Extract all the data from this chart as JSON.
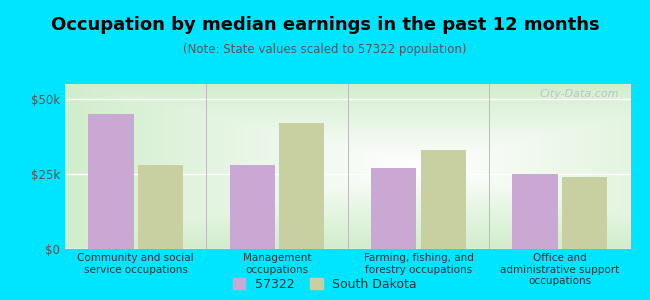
{
  "title": "Occupation by median earnings in the past 12 months",
  "subtitle": "(Note: State values scaled to 57322 population)",
  "categories": [
    "Community and social\nservice occupations",
    "Management\noccupations",
    "Farming, fishing, and\nforestry occupations",
    "Office and\nadministrative support\noccupations"
  ],
  "values_57322": [
    45000,
    28000,
    27000,
    25000
  ],
  "values_sd": [
    28000,
    42000,
    33000,
    24000
  ],
  "color_57322": "#c9a8d4",
  "color_sd": "#c8cfa0",
  "background_outer": "#00e5ff",
  "background_inner_edge": "#c8e6c0",
  "background_inner_center": "#f5faf0",
  "yticks": [
    0,
    25000,
    50000
  ],
  "ytick_labels": [
    "$0",
    "$25k",
    "$50k"
  ],
  "ylim": [
    0,
    55000
  ],
  "legend_label_1": "57322",
  "legend_label_2": "South Dakota",
  "watermark": "City-Data.com",
  "title_fontsize": 13,
  "subtitle_fontsize": 8.5,
  "bar_width": 0.32
}
